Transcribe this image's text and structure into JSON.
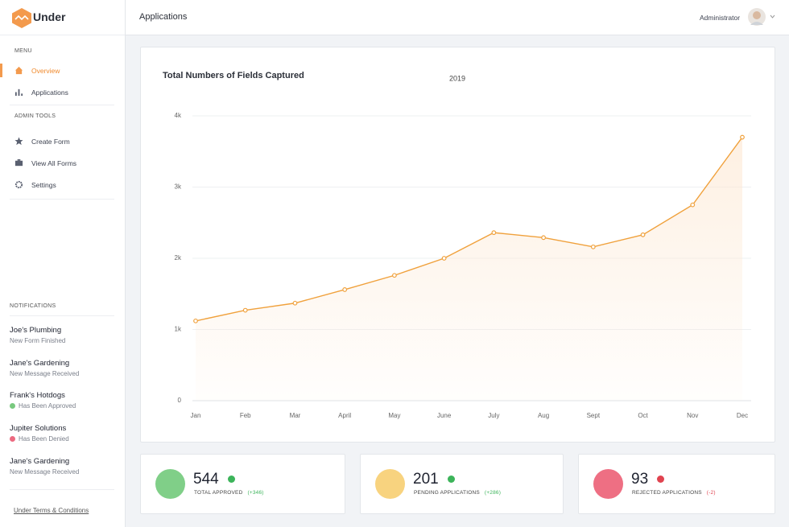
{
  "brand": "Under",
  "header": {
    "title": "Applications",
    "user": "Administrator"
  },
  "sidebar": {
    "menu_heading": "MENU",
    "menu": [
      "Overview",
      "Applications"
    ],
    "admin_heading": "ADMIN TOOLS",
    "admin": [
      "Create Form",
      "View All Forms",
      "Settings"
    ],
    "notifications_heading": "NOTIFICATIONS",
    "notifications": [
      {
        "title": "Joe's Plumbing",
        "status": "New Form Finished"
      },
      {
        "title": "Jane's Gardening",
        "status": "New Message Received"
      },
      {
        "title": "Frank's Hotdogs",
        "status": "Has Been Approved",
        "color": "#79c97f"
      },
      {
        "title": "Jupiter Solutions",
        "status": "Has Been Denied",
        "color": "#ec6a80"
      },
      {
        "title": "Jane's Gardening",
        "status": "New Message Received"
      }
    ],
    "footer": "Under Terms & Conditions"
  },
  "chart_data": {
    "type": "line",
    "title": "Total Numbers of Fields Captured",
    "categories": [
      "Jan",
      "Feb",
      "Mar",
      "April",
      "May",
      "June",
      "July",
      "Aug",
      "Sept",
      "Oct",
      "Nov",
      "Dec"
    ],
    "series": [
      {
        "name": "2019",
        "color": "#f0a13c",
        "values": [
          1120,
          1270,
          1370,
          1560,
          1760,
          2000,
          2360,
          2290,
          2160,
          2330,
          2750,
          3700
        ]
      }
    ],
    "ylim": [
      0,
      4000
    ],
    "yticks": [
      0,
      {
        "value": 1000,
        "label": "1k"
      },
      {
        "value": 2000,
        "label": "2k"
      },
      {
        "value": 3000,
        "label": "3k"
      },
      {
        "value": 4000,
        "label": "4k"
      }
    ],
    "grid": true
  },
  "stats": [
    {
      "value": 544,
      "label": "TOTAL APPROVED",
      "delta": "(+346)",
      "color": "#80cf88",
      "badge": "#3cb45a"
    },
    {
      "value": 201,
      "label": "PENDING APPLICATIONS",
      "delta": "(+286)",
      "color": "#f8d37f",
      "badge": "#3cb45a"
    },
    {
      "value": 93,
      "label": "REJECTED APPLICATIONS",
      "delta": "(-2)",
      "color": "#ee6f83",
      "badge": "#e0434f"
    }
  ]
}
